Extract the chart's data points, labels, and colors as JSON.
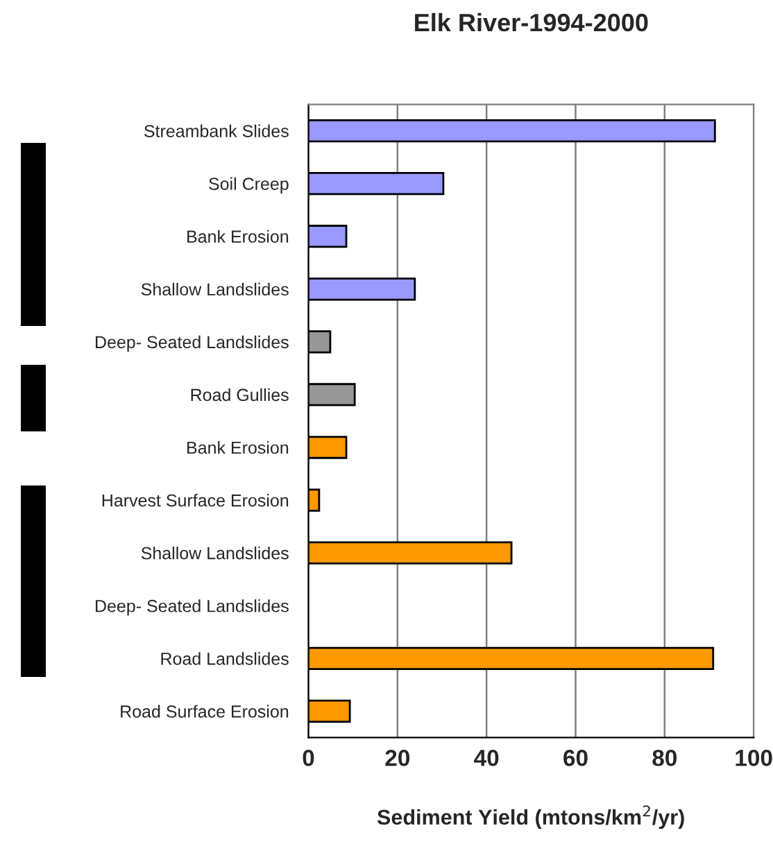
{
  "chart_data": {
    "type": "bar",
    "orientation": "horizontal",
    "title": "Elk River-1994-2000",
    "xlabel": "Sediment Yield (mtons/km$^{2}$/yr)",
    "categories": [
      "Streambank Slides",
      "Soil Creep",
      "Bank Erosion",
      "Shallow Landslides",
      "Deep- Seated Landslides",
      "Road Gullies",
      "Bank Erosion",
      "Harvest Surface Erosion",
      "Shallow Landslides",
      "Deep- Seated Landslides",
      "Road Landslides",
      "Road Surface Erosion"
    ],
    "values": [
      91.3,
      30.3,
      8.5,
      23.9,
      4.9,
      10.4,
      8.5,
      2.4,
      45.6,
      null,
      90.9,
      9.3
    ],
    "colors": [
      "#9999ff",
      "#9999ff",
      "#9999ff",
      "#9999ff",
      "#969696",
      "#969696",
      "#ff9900",
      "#ff9900",
      "#ff9900",
      "#ff9900",
      "#ff9900",
      "#ff9900"
    ],
    "xlim": [
      0,
      100
    ],
    "xticks": [
      0,
      20,
      40,
      60,
      80,
      100
    ],
    "grid": "x"
  }
}
